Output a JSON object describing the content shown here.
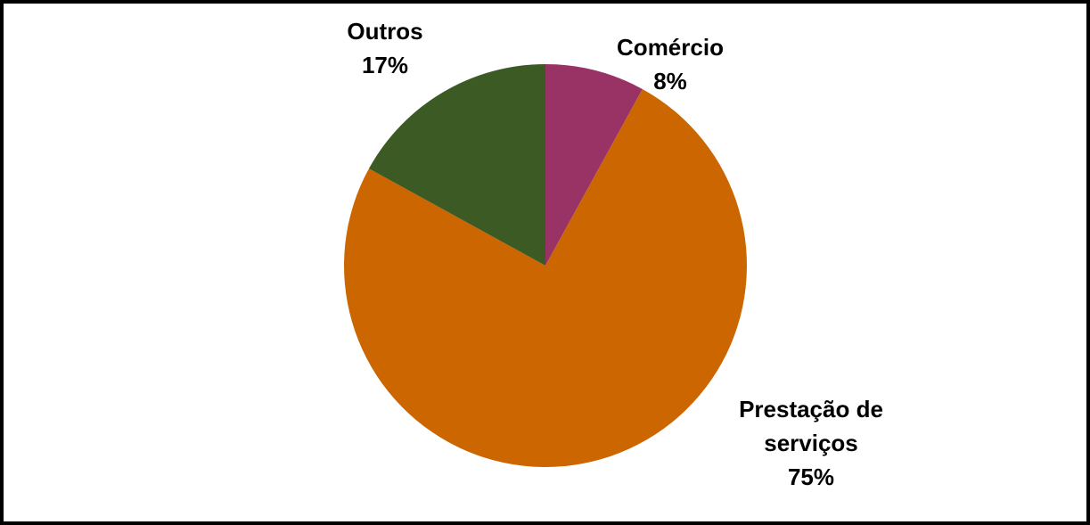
{
  "chart_data": {
    "type": "pie",
    "categories": [
      "Comércio",
      "Prestação de serviços",
      "Outros"
    ],
    "values": [
      8,
      75,
      17
    ],
    "value_labels": [
      "8%",
      "75%",
      "17%"
    ],
    "colors": [
      "#993366",
      "#cc6600",
      "#3b5a24"
    ]
  }
}
